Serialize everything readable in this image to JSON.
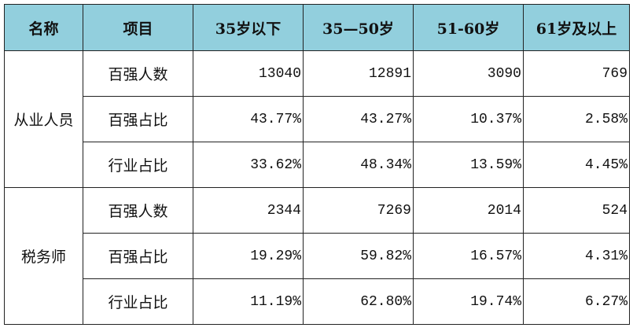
{
  "table": {
    "header": [
      "名称",
      "项目",
      "35岁以下",
      "35—50岁",
      "51-60岁",
      "61岁及以上"
    ],
    "groups": [
      {
        "name": "从业人员",
        "rows": [
          {
            "item": "百强人数",
            "values": [
              "13040",
              "12891",
              "3090",
              "769"
            ]
          },
          {
            "item": "百强占比",
            "values": [
              "43.77%",
              "43.27%",
              "10.37%",
              "2.58%"
            ]
          },
          {
            "item": "行业占比",
            "values": [
              "33.62%",
              "48.34%",
              "13.59%",
              "4.45%"
            ]
          }
        ]
      },
      {
        "name": "税务师",
        "rows": [
          {
            "item": "百强人数",
            "values": [
              "2344",
              "7269",
              "2014",
              "524"
            ]
          },
          {
            "item": "百强占比",
            "values": [
              "19.29%",
              "59.82%",
              "16.57%",
              "4.31%"
            ]
          },
          {
            "item": "行业占比",
            "values": [
              "11.19%",
              "62.80%",
              "19.74%",
              "6.27%"
            ]
          }
        ]
      }
    ]
  }
}
